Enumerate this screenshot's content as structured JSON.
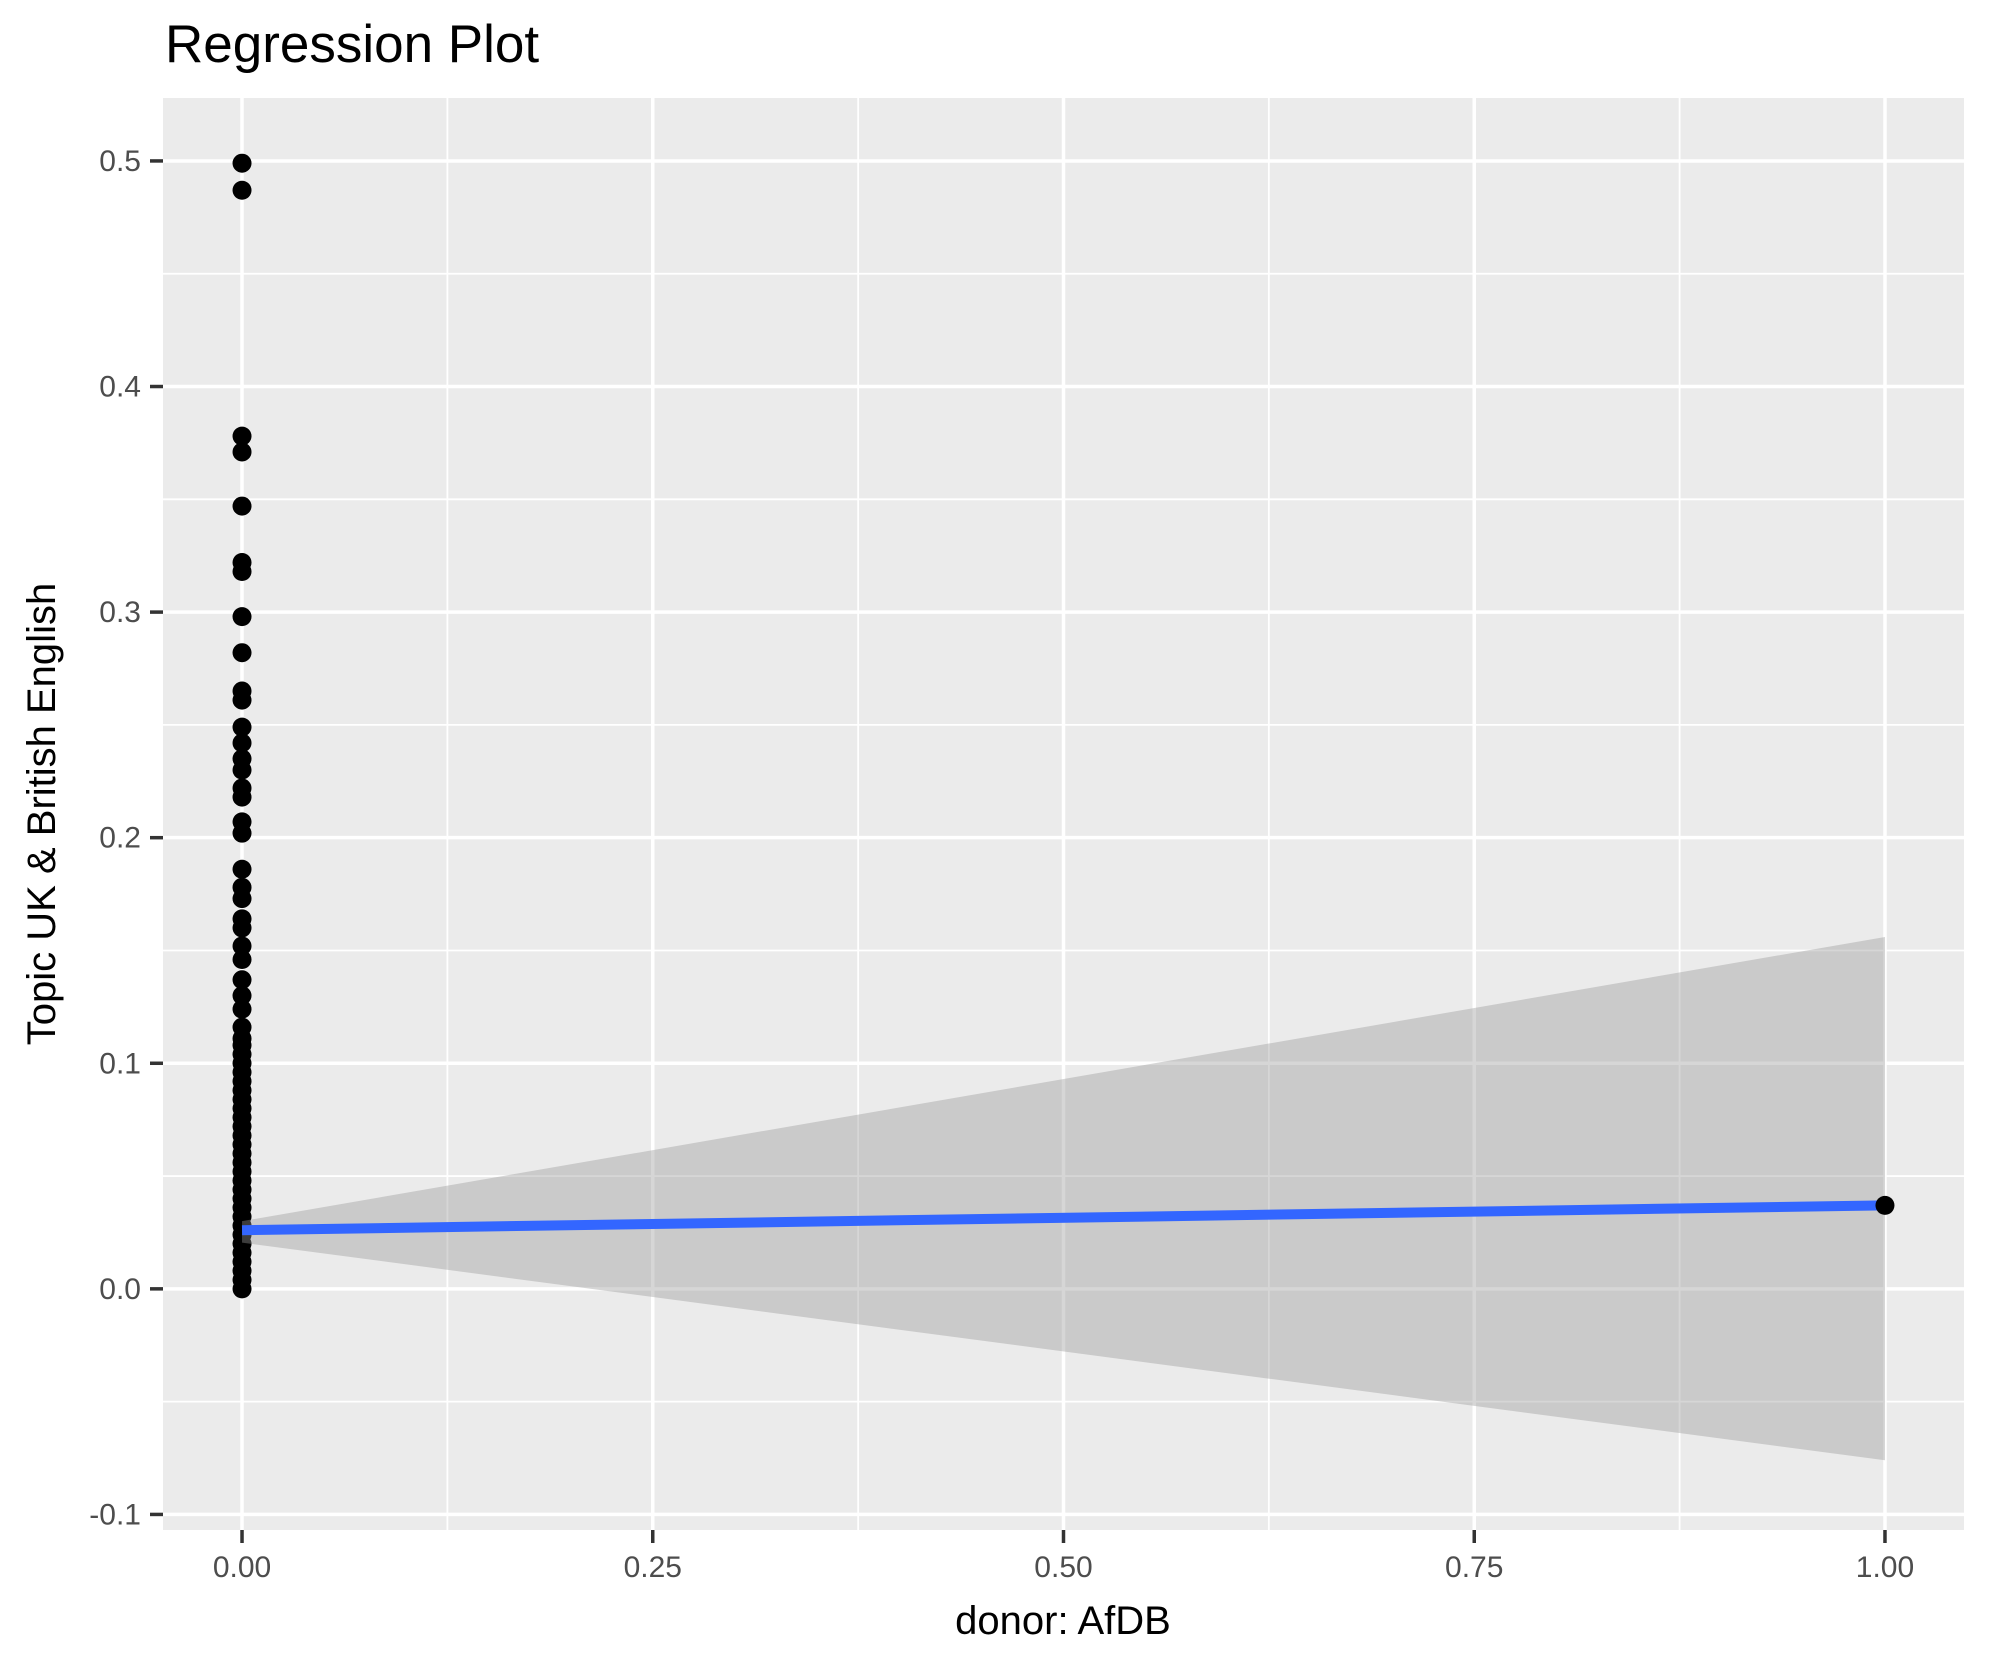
{
  "chart_data": {
    "type": "scatter",
    "title": "Regression Plot",
    "xlabel": "donor: AfDB",
    "ylabel": "Topic UK & British English",
    "xlim": [
      -0.0481,
      1.0481
    ],
    "ylim": [
      -0.1069,
      0.5279
    ],
    "x_ticks": [
      {
        "value": 0.0,
        "label": "0.00"
      },
      {
        "value": 0.25,
        "label": "0.25"
      },
      {
        "value": 0.5,
        "label": "0.50"
      },
      {
        "value": 0.75,
        "label": "0.75"
      },
      {
        "value": 1.0,
        "label": "1.00"
      }
    ],
    "y_ticks": [
      {
        "value": 0.5,
        "label": "0.5"
      },
      {
        "value": 0.4,
        "label": "0.4"
      },
      {
        "value": 0.3,
        "label": "0.3"
      },
      {
        "value": 0.2,
        "label": "0.2"
      },
      {
        "value": 0.1,
        "label": "0.1"
      },
      {
        "value": 0.0,
        "label": "0.0"
      },
      {
        "value": -0.1,
        "label": "-0.1"
      }
    ],
    "x_minor_gridlines": [
      0.125,
      0.375,
      0.625,
      0.875
    ],
    "y_minor_gridlines": [
      0.45,
      0.35,
      0.25,
      0.15,
      0.05,
      -0.05
    ],
    "grid": true,
    "legend": "none",
    "points_at_x0": [
      0.499,
      0.487,
      0.378,
      0.371,
      0.347,
      0.322,
      0.318,
      0.298,
      0.282,
      0.265,
      0.261,
      0.249,
      0.242,
      0.235,
      0.23,
      0.222,
      0.218,
      0.207,
      0.202,
      0.186,
      0.178,
      0.173,
      0.164,
      0.16,
      0.152,
      0.146,
      0.137,
      0.13,
      0.124,
      0.116,
      0.111,
      0.108,
      0.104,
      0.1,
      0.096,
      0.092,
      0.088,
      0.084,
      0.08,
      0.076,
      0.072,
      0.068,
      0.064,
      0.06,
      0.056,
      0.052,
      0.048,
      0.044,
      0.04,
      0.036,
      0.032,
      0.028,
      0.024,
      0.02,
      0.016,
      0.012,
      0.008,
      0.004,
      0.0
    ],
    "points_at_x1": [
      0.037
    ],
    "regression_line": {
      "x": [
        0,
        1
      ],
      "y": [
        0.026,
        0.037
      ]
    },
    "confidence_band": {
      "x": [
        0,
        1
      ],
      "upper": [
        0.03,
        0.156
      ],
      "lower": [
        0.0205,
        -0.076
      ]
    },
    "colors": {
      "background": "#FFFFFF",
      "panel": "#EBEBEB",
      "gridline": "#FFFFFF",
      "point": "#000000",
      "line": "#3366FF",
      "ribbon": "rgba(153,153,153,0.40)",
      "tick_mark": "#333333",
      "tick_label": "#4D4D4D",
      "axis_title": "#000000",
      "title": "#000000"
    }
  }
}
